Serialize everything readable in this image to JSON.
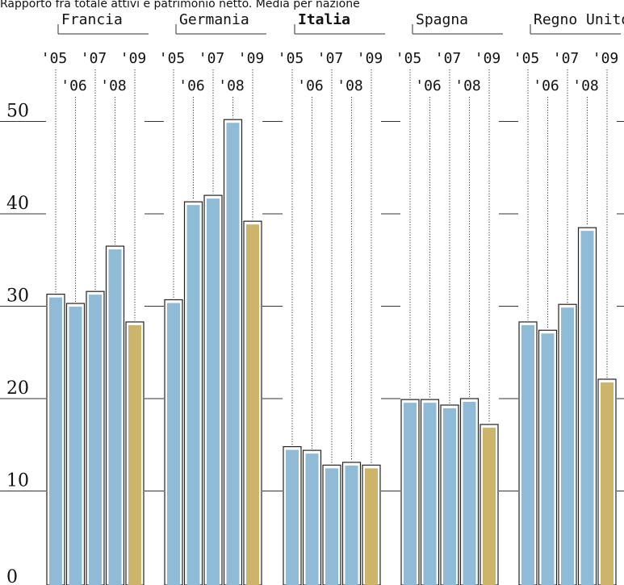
{
  "chart_data": {
    "type": "bar",
    "subtitle": "Rapporto fra totale attivi e patrimonio netto. Media per nazione",
    "groups": [
      {
        "name": "Francia",
        "highlight": false,
        "values": [
          31.3,
          30.3,
          31.6,
          36.5,
          28.3
        ]
      },
      {
        "name": "Germania",
        "highlight": false,
        "values": [
          30.7,
          41.3,
          42.0,
          50.2,
          39.2
        ]
      },
      {
        "name": "Italia",
        "highlight": true,
        "values": [
          14.8,
          14.4,
          12.8,
          13.1,
          12.8
        ]
      },
      {
        "name": "Spagna",
        "highlight": false,
        "values": [
          19.9,
          19.9,
          19.3,
          20.0,
          17.2
        ]
      },
      {
        "name": "Regno Unito",
        "highlight": false,
        "values": [
          28.3,
          27.4,
          30.2,
          38.5,
          22.1
        ]
      }
    ],
    "years_top": [
      "'05",
      "'07",
      "'09"
    ],
    "years_bottom": [
      "'06",
      "'08"
    ],
    "yticks": [
      "0",
      "10",
      "20",
      "30",
      "40",
      "50"
    ],
    "ylim": [
      0,
      55
    ],
    "grid": true,
    "colors": {
      "regular": "#8fbbd6",
      "last_year": "#ccb56a",
      "outline": "#222222"
    }
  }
}
